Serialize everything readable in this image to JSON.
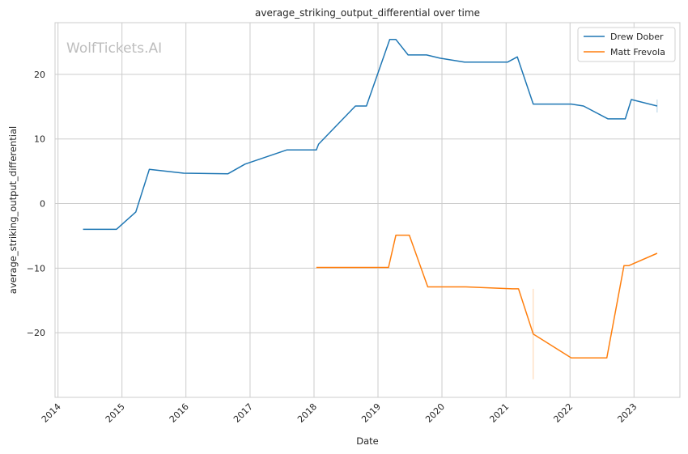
{
  "chart_data": {
    "type": "line",
    "title": "average_striking_output_differential over time",
    "xlabel": "Date",
    "ylabel": "average_striking_output_differential",
    "watermark": "WolfTickets.AI",
    "x_ticks": [
      "2014",
      "2015",
      "2016",
      "2017",
      "2018",
      "2019",
      "2020",
      "2021",
      "2022",
      "2023"
    ],
    "y_ticks": [
      20,
      10,
      0,
      -10,
      -20
    ],
    "xlim": [
      "2013-12-15",
      "2023-09-20"
    ],
    "ylim": [
      -30,
      28
    ],
    "grid": true,
    "legend_position": "top-right",
    "series": [
      {
        "name": "Drew Dober",
        "color": "#1f77b4",
        "points": [
          [
            "2014-05-24",
            -4.0
          ],
          [
            "2014-11-30",
            -4.0
          ],
          [
            "2015-03-21",
            -1.3
          ],
          [
            "2015-06-06",
            5.3
          ],
          [
            "2015-12-19",
            4.7
          ],
          [
            "2016-08-27",
            4.6
          ],
          [
            "2016-12-03",
            6.1
          ],
          [
            "2017-07-29",
            8.3
          ],
          [
            "2018-01-14",
            8.3
          ],
          [
            "2018-01-27",
            9.2
          ],
          [
            "2018-08-25",
            15.1
          ],
          [
            "2018-10-27",
            15.1
          ],
          [
            "2019-03-09",
            25.4
          ],
          [
            "2019-04-13",
            25.4
          ],
          [
            "2019-06-22",
            23.0
          ],
          [
            "2019-10-05",
            23.0
          ],
          [
            "2019-12-21",
            22.5
          ],
          [
            "2020-05-09",
            21.9
          ],
          [
            "2021-01-10",
            21.9
          ],
          [
            "2021-03-06",
            22.7
          ],
          [
            "2021-06-05",
            15.4
          ],
          [
            "2022-01-08",
            15.4
          ],
          [
            "2022-03-19",
            15.1
          ],
          [
            "2022-08-06",
            13.1
          ],
          [
            "2022-11-12",
            13.1
          ],
          [
            "2022-12-17",
            16.1
          ],
          [
            "2023-05-13",
            15.1
          ]
        ],
        "error_bar": {
          "x": "2023-05-13",
          "low": 14.1,
          "high": 16.1
        }
      },
      {
        "name": "Matt Frevola",
        "color": "#ff7f0e",
        "points": [
          [
            "2018-01-14",
            -9.9
          ],
          [
            "2019-03-02",
            -9.9
          ],
          [
            "2019-04-13",
            -4.9
          ],
          [
            "2019-06-29",
            -4.9
          ],
          [
            "2019-10-12",
            -12.9
          ],
          [
            "2020-05-16",
            -12.9
          ],
          [
            "2021-02-06",
            -13.2
          ],
          [
            "2021-03-13",
            -13.2
          ],
          [
            "2021-06-05",
            -20.2
          ],
          [
            "2022-01-08",
            -23.9
          ],
          [
            "2022-07-30",
            -23.9
          ],
          [
            "2022-11-05",
            -9.6
          ],
          [
            "2022-12-03",
            -9.6
          ],
          [
            "2023-05-13",
            -7.7
          ]
        ],
        "error_bar": {
          "x": "2021-06-05",
          "low": -27.2,
          "high": -13.2
        }
      }
    ]
  }
}
